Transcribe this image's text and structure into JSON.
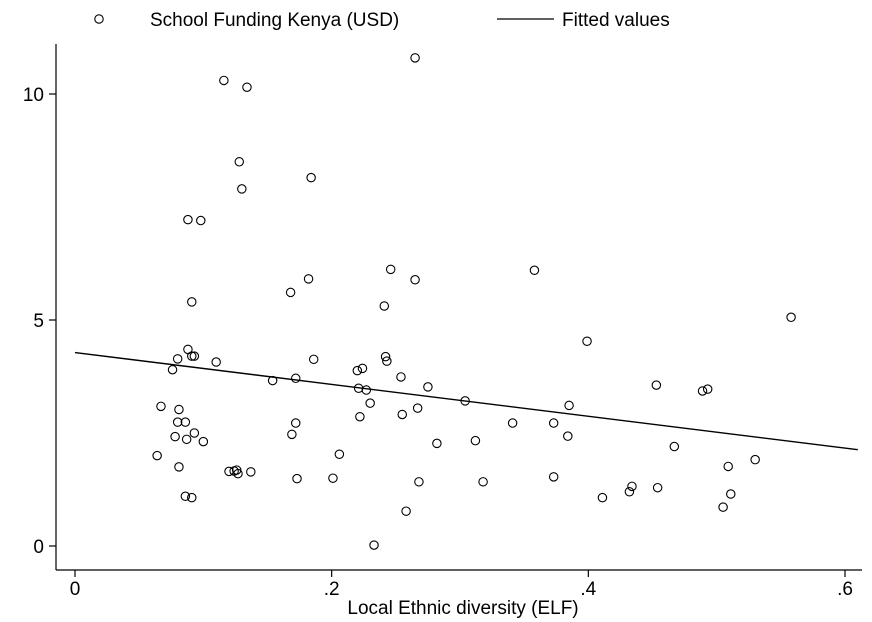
{
  "chart_data": {
    "type": "scatter",
    "title": "",
    "xlabel": "Local Ethnic diversity (ELF)",
    "ylabel": "",
    "xlim": [
      0,
      0.613
    ],
    "ylim": [
      -0.5,
      11.2
    ],
    "xticks": [
      0,
      0.2,
      0.4,
      0.6
    ],
    "xtick_labels": [
      "0",
      ".2",
      ".4",
      ".6"
    ],
    "yticks": [
      0,
      5,
      10
    ],
    "ytick_labels": [
      "0",
      "5",
      "10"
    ],
    "grid": false,
    "legend": {
      "position": "top",
      "entries": [
        {
          "label": "School Funding Kenya (USD)",
          "marker": "hollow-circle"
        },
        {
          "label": "Fitted values",
          "marker": "line"
        }
      ]
    },
    "series": [
      {
        "name": "School Funding Kenya (USD)",
        "kind": "scatter",
        "color": "#000000",
        "points": [
          [
            0.116,
            10.3
          ],
          [
            0.134,
            10.15
          ],
          [
            0.265,
            10.8
          ],
          [
            0.128,
            8.5
          ],
          [
            0.13,
            7.9
          ],
          [
            0.184,
            8.15
          ],
          [
            0.088,
            7.22
          ],
          [
            0.098,
            7.2
          ],
          [
            0.246,
            6.12
          ],
          [
            0.265,
            5.89
          ],
          [
            0.358,
            6.1
          ],
          [
            0.182,
            5.91
          ],
          [
            0.168,
            5.61
          ],
          [
            0.091,
            5.4
          ],
          [
            0.241,
            5.31
          ],
          [
            0.558,
            5.06
          ],
          [
            0.088,
            4.35
          ],
          [
            0.091,
            4.2
          ],
          [
            0.093,
            4.2
          ],
          [
            0.08,
            4.14
          ],
          [
            0.11,
            4.07
          ],
          [
            0.076,
            3.9
          ],
          [
            0.242,
            4.19
          ],
          [
            0.243,
            4.09
          ],
          [
            0.186,
            4.13
          ],
          [
            0.22,
            3.88
          ],
          [
            0.224,
            3.93
          ],
          [
            0.399,
            4.53
          ],
          [
            0.154,
            3.66
          ],
          [
            0.172,
            3.71
          ],
          [
            0.254,
            3.74
          ],
          [
            0.221,
            3.49
          ],
          [
            0.227,
            3.45
          ],
          [
            0.275,
            3.52
          ],
          [
            0.453,
            3.56
          ],
          [
            0.489,
            3.43
          ],
          [
            0.493,
            3.47
          ],
          [
            0.067,
            3.09
          ],
          [
            0.081,
            3.02
          ],
          [
            0.23,
            3.16
          ],
          [
            0.304,
            3.21
          ],
          [
            0.385,
            3.11
          ],
          [
            0.08,
            2.74
          ],
          [
            0.086,
            2.74
          ],
          [
            0.222,
            2.86
          ],
          [
            0.255,
            2.91
          ],
          [
            0.267,
            3.05
          ],
          [
            0.172,
            2.72
          ],
          [
            0.341,
            2.72
          ],
          [
            0.373,
            2.72
          ],
          [
            0.078,
            2.42
          ],
          [
            0.087,
            2.36
          ],
          [
            0.093,
            2.5
          ],
          [
            0.1,
            2.31
          ],
          [
            0.169,
            2.47
          ],
          [
            0.282,
            2.27
          ],
          [
            0.312,
            2.33
          ],
          [
            0.384,
            2.43
          ],
          [
            0.467,
            2.2
          ],
          [
            0.064,
            2.0
          ],
          [
            0.206,
            2.03
          ],
          [
            0.53,
            1.91
          ],
          [
            0.081,
            1.75
          ],
          [
            0.12,
            1.65
          ],
          [
            0.124,
            1.66
          ],
          [
            0.126,
            1.68
          ],
          [
            0.127,
            1.6
          ],
          [
            0.137,
            1.64
          ],
          [
            0.509,
            1.76
          ],
          [
            0.173,
            1.49
          ],
          [
            0.201,
            1.5
          ],
          [
            0.268,
            1.42
          ],
          [
            0.318,
            1.42
          ],
          [
            0.373,
            1.53
          ],
          [
            0.086,
            1.1
          ],
          [
            0.091,
            1.07
          ],
          [
            0.411,
            1.07
          ],
          [
            0.432,
            1.2
          ],
          [
            0.434,
            1.32
          ],
          [
            0.454,
            1.29
          ],
          [
            0.511,
            1.15
          ],
          [
            0.505,
            0.86
          ],
          [
            0.258,
            0.77
          ],
          [
            0.233,
            0.02
          ]
        ]
      },
      {
        "name": "Fitted values",
        "kind": "line",
        "color": "#000000",
        "points": [
          [
            0.0,
            4.28
          ],
          [
            0.61,
            2.13
          ]
        ]
      }
    ]
  }
}
